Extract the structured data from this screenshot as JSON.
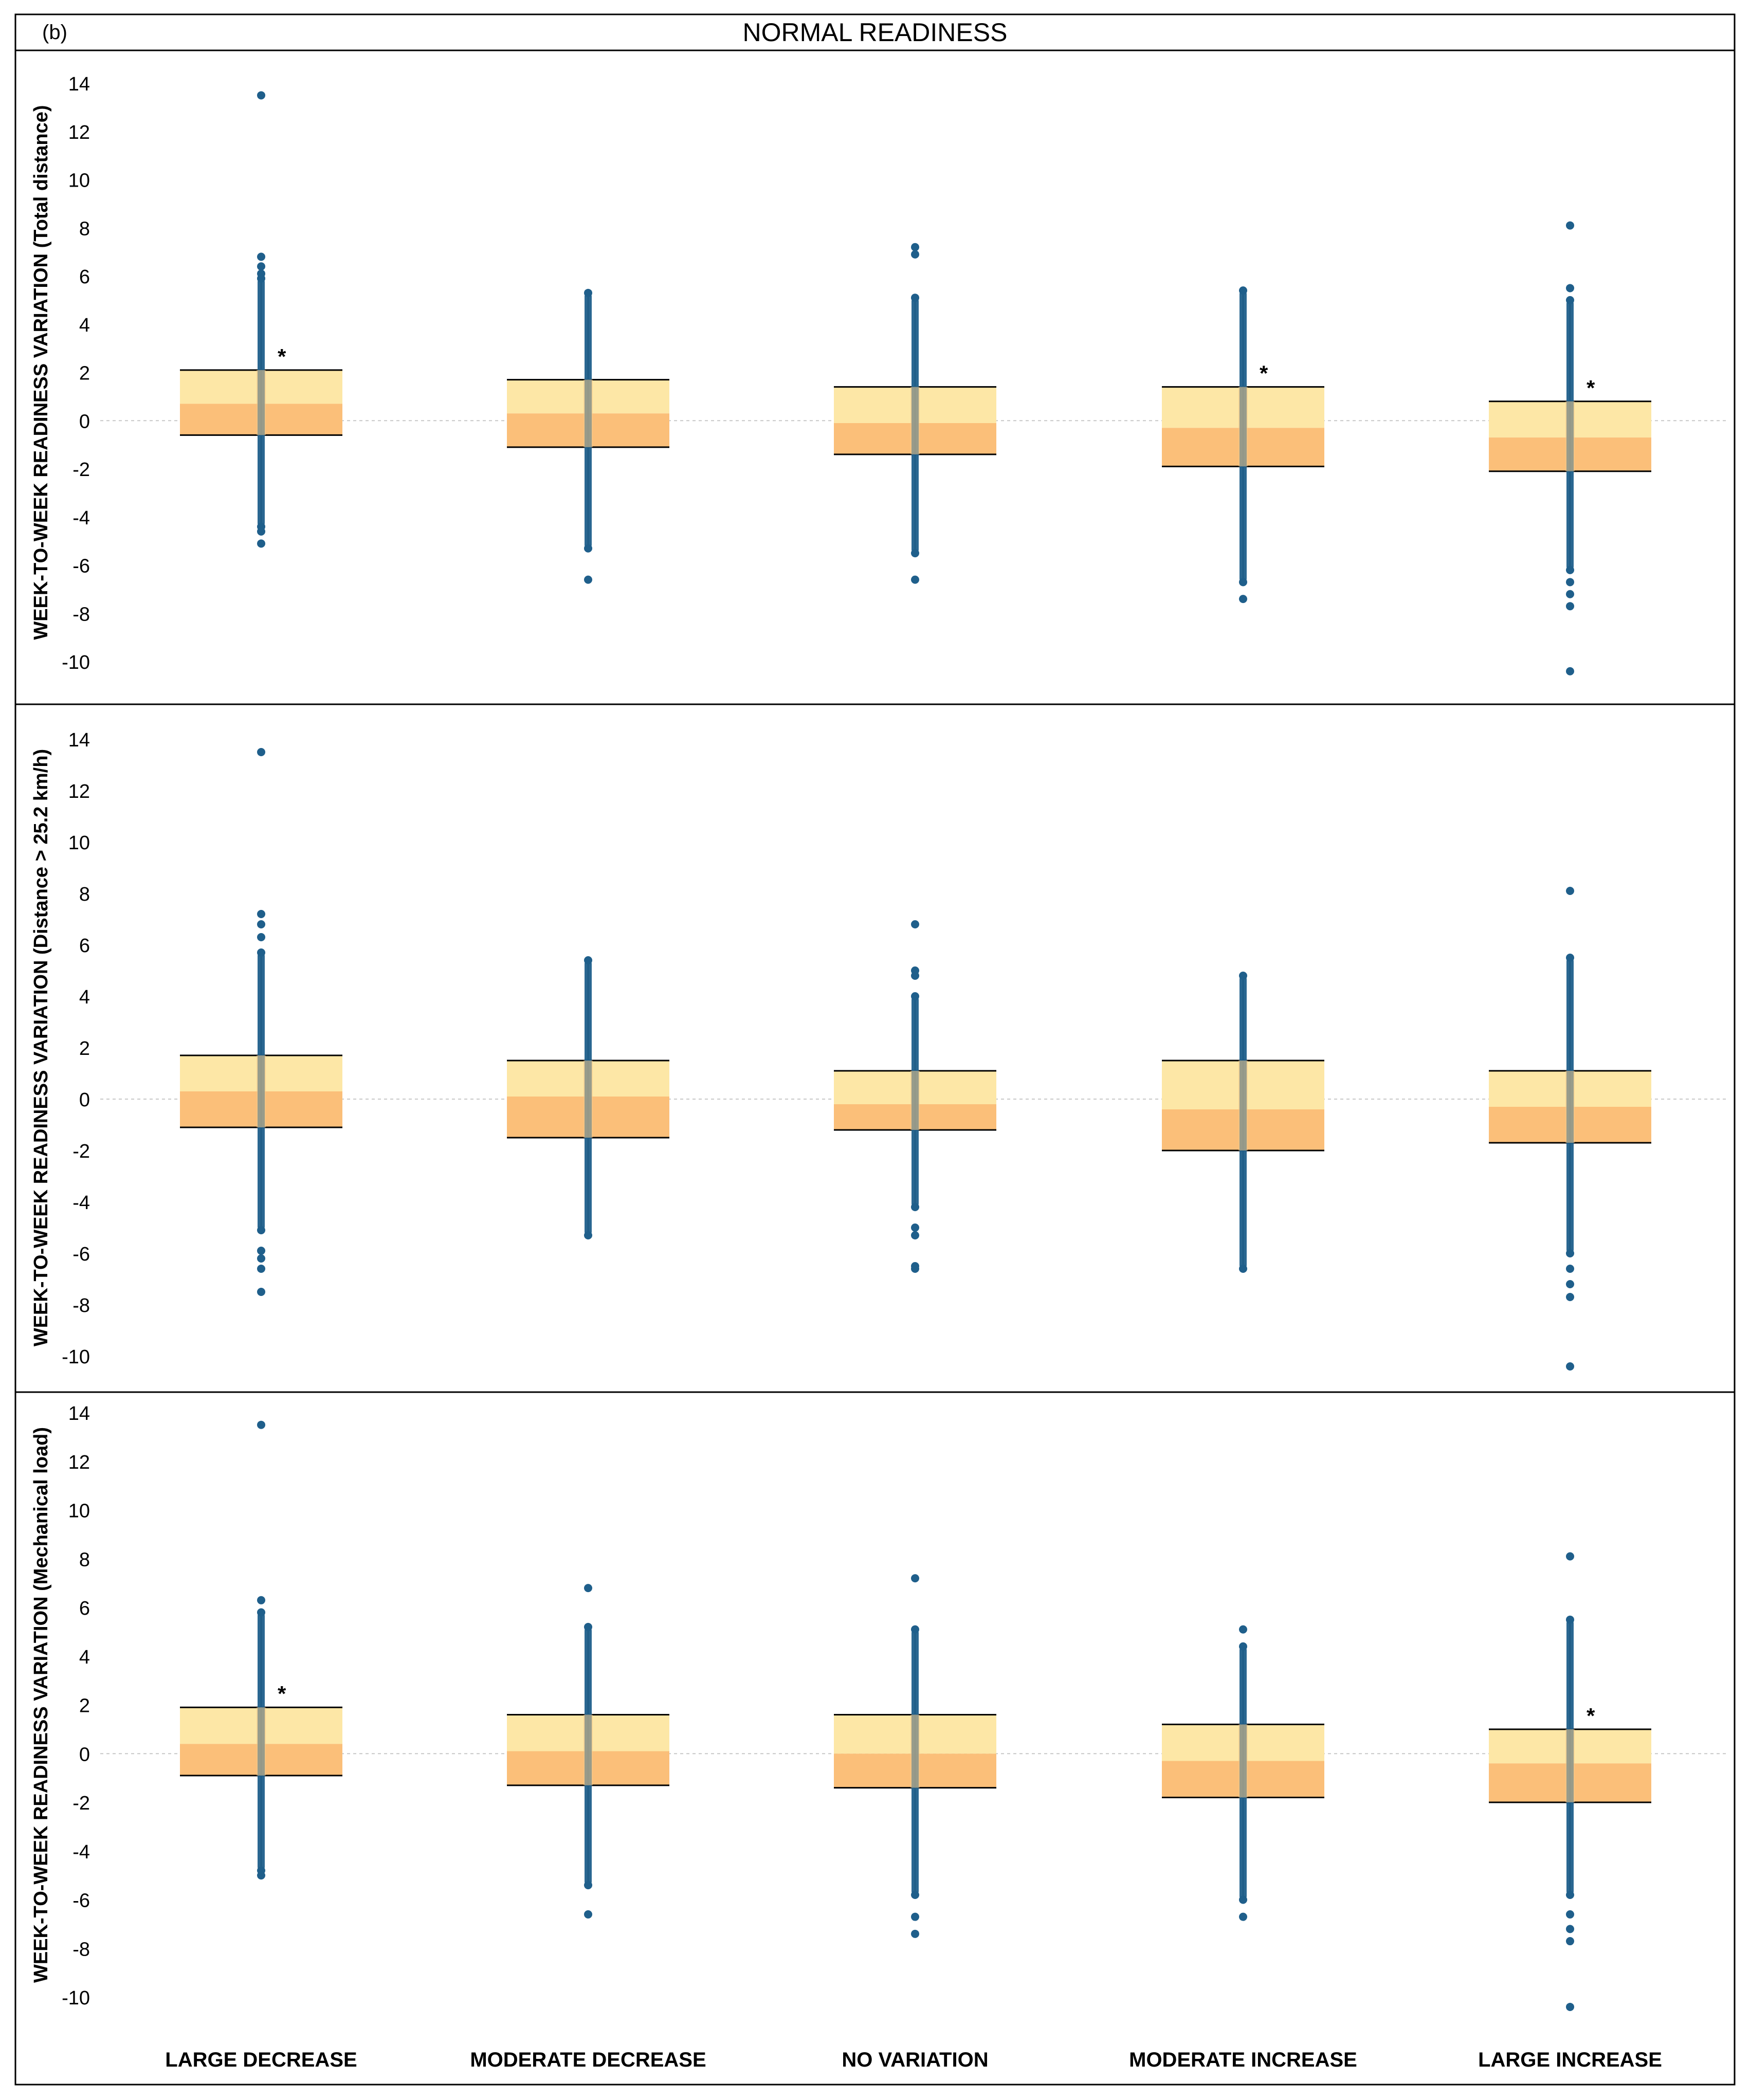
{
  "figure": {
    "panel_letter": "(b)",
    "title": "NORMAL READINESS"
  },
  "colors": {
    "box_upper": "#fde7a6",
    "box_lower": "#fbbf79",
    "points": "#1f5f8b",
    "frame": "#000000",
    "zero_line": "#c8c8c8"
  },
  "chart_data": [
    {
      "type": "box",
      "ylabel": "WEEK-TO-WEEK READINESS VARIATION (Total distance)",
      "ylim": [
        -11,
        15
      ],
      "yticks": [
        14,
        12,
        10,
        8,
        6,
        4,
        2,
        0,
        -2,
        -4,
        -6,
        -8,
        -10
      ],
      "categories": [
        "LARGE DECREASE",
        "MODERATE DECREASE",
        "NO VARIATION",
        "MODERATE INCREASE",
        "LARGE INCREASE"
      ],
      "boxes": [
        {
          "q1": -0.6,
          "median": 0.7,
          "q3": 2.1,
          "whisker_low": -4.4,
          "whisker_high": 5.9,
          "outliers": [
            13.5,
            6.8,
            6.4,
            6.1,
            -4.6,
            -5.1
          ],
          "significant": true
        },
        {
          "q1": -1.1,
          "median": 0.3,
          "q3": 1.7,
          "whisker_low": -5.3,
          "whisker_high": 5.3,
          "outliers": [
            -6.6
          ],
          "significant": false
        },
        {
          "q1": -1.4,
          "median": -0.1,
          "q3": 1.4,
          "whisker_low": -5.5,
          "whisker_high": 5.1,
          "outliers": [
            7.2,
            6.9,
            -6.6
          ],
          "significant": false
        },
        {
          "q1": -1.9,
          "median": -0.3,
          "q3": 1.4,
          "whisker_low": -6.7,
          "whisker_high": 5.4,
          "outliers": [
            -7.4
          ],
          "significant": true
        },
        {
          "q1": -2.1,
          "median": -0.7,
          "q3": 0.8,
          "whisker_low": -6.2,
          "whisker_high": 5.0,
          "outliers": [
            8.1,
            5.5,
            -6.7,
            -7.2,
            -7.7,
            -10.4
          ],
          "significant": true
        }
      ]
    },
    {
      "type": "box",
      "ylabel": "WEEK-TO-WEEK READINESS VARIATION (Distance > 25.2 km/h)",
      "ylim": [
        -11,
        15
      ],
      "yticks": [
        14,
        12,
        10,
        8,
        6,
        4,
        2,
        0,
        -2,
        -4,
        -6,
        -8,
        -10
      ],
      "categories": [
        "LARGE DECREASE",
        "MODERATE DECREASE",
        "NO VARIATION",
        "MODERATE INCREASE",
        "LARGE INCREASE"
      ],
      "boxes": [
        {
          "q1": -1.1,
          "median": 0.3,
          "q3": 1.7,
          "whisker_low": -5.1,
          "whisker_high": 5.7,
          "outliers": [
            13.5,
            7.2,
            6.8,
            6.3,
            -5.9,
            -6.2,
            -6.6,
            -7.5
          ],
          "significant": false
        },
        {
          "q1": -1.5,
          "median": 0.1,
          "q3": 1.5,
          "whisker_low": -5.3,
          "whisker_high": 5.4,
          "outliers": [],
          "significant": false
        },
        {
          "q1": -1.2,
          "median": -0.2,
          "q3": 1.1,
          "whisker_low": -4.2,
          "whisker_high": 4.0,
          "outliers": [
            6.8,
            5.0,
            4.8,
            -5.0,
            -5.3,
            -6.5,
            -6.6
          ],
          "significant": false
        },
        {
          "q1": -2.0,
          "median": -0.4,
          "q3": 1.5,
          "whisker_low": -6.6,
          "whisker_high": 4.8,
          "outliers": [],
          "significant": false
        },
        {
          "q1": -1.7,
          "median": -0.3,
          "q3": 1.1,
          "whisker_low": -6.0,
          "whisker_high": 5.5,
          "outliers": [
            8.1,
            -6.6,
            -7.2,
            -7.7,
            -10.4
          ],
          "significant": false
        }
      ]
    },
    {
      "type": "box",
      "ylabel": "WEEK-TO-WEEK READINESS VARIATION (Mechanical load)",
      "ylim": [
        -11,
        15
      ],
      "yticks": [
        14,
        12,
        10,
        8,
        6,
        4,
        2,
        0,
        -2,
        -4,
        -6,
        -8,
        -10
      ],
      "categories": [
        "LARGE DECREASE",
        "MODERATE DECREASE",
        "NO VARIATION",
        "MODERATE INCREASE",
        "LARGE INCREASE"
      ],
      "boxes": [
        {
          "q1": -0.9,
          "median": 0.4,
          "q3": 1.9,
          "whisker_low": -4.8,
          "whisker_high": 5.8,
          "outliers": [
            13.5,
            6.3,
            -5.0
          ],
          "significant": true
        },
        {
          "q1": -1.3,
          "median": 0.1,
          "q3": 1.6,
          "whisker_low": -5.4,
          "whisker_high": 5.2,
          "outliers": [
            6.8,
            -6.6
          ],
          "significant": false
        },
        {
          "q1": -1.4,
          "median": 0.0,
          "q3": 1.6,
          "whisker_low": -5.8,
          "whisker_high": 5.1,
          "outliers": [
            7.2,
            -6.7,
            -7.4
          ],
          "significant": false
        },
        {
          "q1": -1.8,
          "median": -0.3,
          "q3": 1.2,
          "whisker_low": -6.0,
          "whisker_high": 4.4,
          "outliers": [
            5.1,
            -6.7
          ],
          "significant": false
        },
        {
          "q1": -2.0,
          "median": -0.4,
          "q3": 1.0,
          "whisker_low": -5.8,
          "whisker_high": 5.5,
          "outliers": [
            8.1,
            -6.6,
            -7.2,
            -7.7,
            -10.4
          ],
          "significant": true
        }
      ]
    }
  ]
}
